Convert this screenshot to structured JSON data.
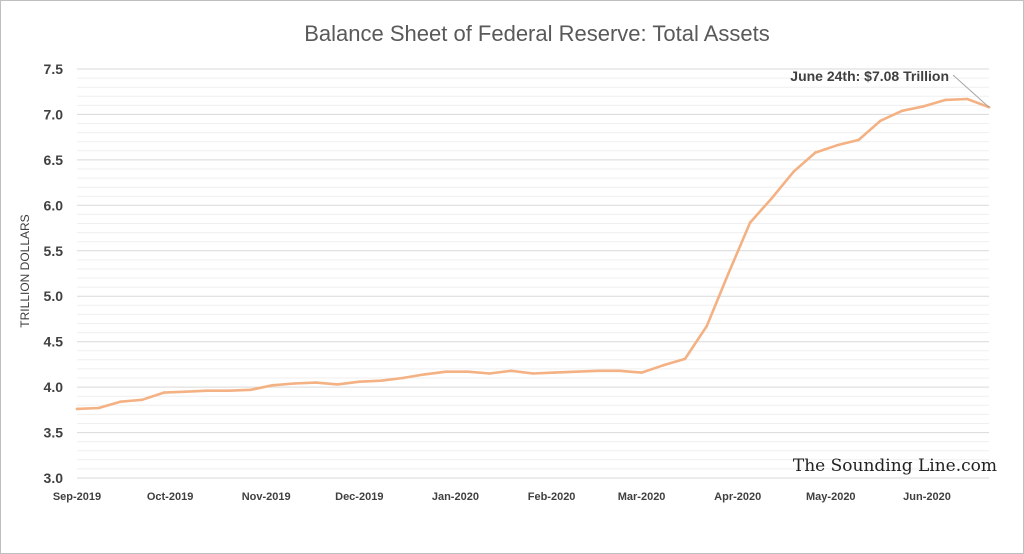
{
  "chart_data": {
    "type": "line",
    "title": "Balance Sheet of Federal Reserve: Total Assets",
    "ylabel": "TRILLION DOLLARS",
    "xlabel": "",
    "ylim": [
      3.0,
      7.5
    ],
    "yticks": [
      "3.0",
      "3.5",
      "4.0",
      "4.5",
      "5.0",
      "5.5",
      "6.0",
      "6.5",
      "7.0",
      "7.5"
    ],
    "y_tick_values": [
      3.0,
      3.5,
      4.0,
      4.5,
      5.0,
      5.5,
      6.0,
      6.5,
      7.0,
      7.5
    ],
    "xlim": [
      "2019-09-04",
      "2020-06-24"
    ],
    "xticks": [
      {
        "date": "2019-09-04",
        "label": "Sep-2019"
      },
      {
        "date": "2019-10-04",
        "label": "Oct-2019"
      },
      {
        "date": "2019-11-04",
        "label": "Nov-2019"
      },
      {
        "date": "2019-12-04",
        "label": "Dec-2019"
      },
      {
        "date": "2020-01-04",
        "label": "Jan-2020"
      },
      {
        "date": "2020-02-04",
        "label": "Feb-2020"
      },
      {
        "date": "2020-03-04",
        "label": "Mar-2020"
      },
      {
        "date": "2020-04-04",
        "label": "Apr-2020"
      },
      {
        "date": "2020-05-04",
        "label": "May-2020"
      },
      {
        "date": "2020-06-04",
        "label": "Jun-2020"
      }
    ],
    "grid": "horizontal",
    "legend": "none",
    "series": [
      {
        "color": "#f4b183",
        "x": [
          "2019-09-04",
          "2019-09-11",
          "2019-09-18",
          "2019-09-25",
          "2019-10-02",
          "2019-10-09",
          "2019-10-16",
          "2019-10-23",
          "2019-10-30",
          "2019-11-06",
          "2019-11-13",
          "2019-11-20",
          "2019-11-27",
          "2019-12-04",
          "2019-12-11",
          "2019-12-18",
          "2019-12-25",
          "2020-01-01",
          "2020-01-08",
          "2020-01-15",
          "2020-01-22",
          "2020-01-29",
          "2020-02-05",
          "2020-02-12",
          "2020-02-19",
          "2020-02-26",
          "2020-03-04",
          "2020-03-11",
          "2020-03-18",
          "2020-03-25",
          "2020-04-01",
          "2020-04-08",
          "2020-04-15",
          "2020-04-22",
          "2020-04-29",
          "2020-05-06",
          "2020-05-13",
          "2020-05-20",
          "2020-05-27",
          "2020-06-03",
          "2020-06-10",
          "2020-06-17",
          "2020-06-24"
        ],
        "values": [
          3.76,
          3.77,
          3.84,
          3.86,
          3.94,
          3.95,
          3.96,
          3.96,
          3.97,
          4.02,
          4.04,
          4.05,
          4.03,
          4.06,
          4.07,
          4.1,
          4.14,
          4.17,
          4.17,
          4.15,
          4.18,
          4.15,
          4.16,
          4.17,
          4.18,
          4.18,
          4.16,
          4.24,
          4.31,
          4.67,
          5.25,
          5.81,
          6.08,
          6.37,
          6.58,
          6.66,
          6.72,
          6.93,
          7.04,
          7.09,
          7.16,
          7.17,
          7.08
        ]
      }
    ],
    "annotation": {
      "text": "June 24th: $7.08 Trillion",
      "date": "2020-06-24",
      "value": 7.08
    }
  },
  "watermark": "The Sounding Line.com"
}
